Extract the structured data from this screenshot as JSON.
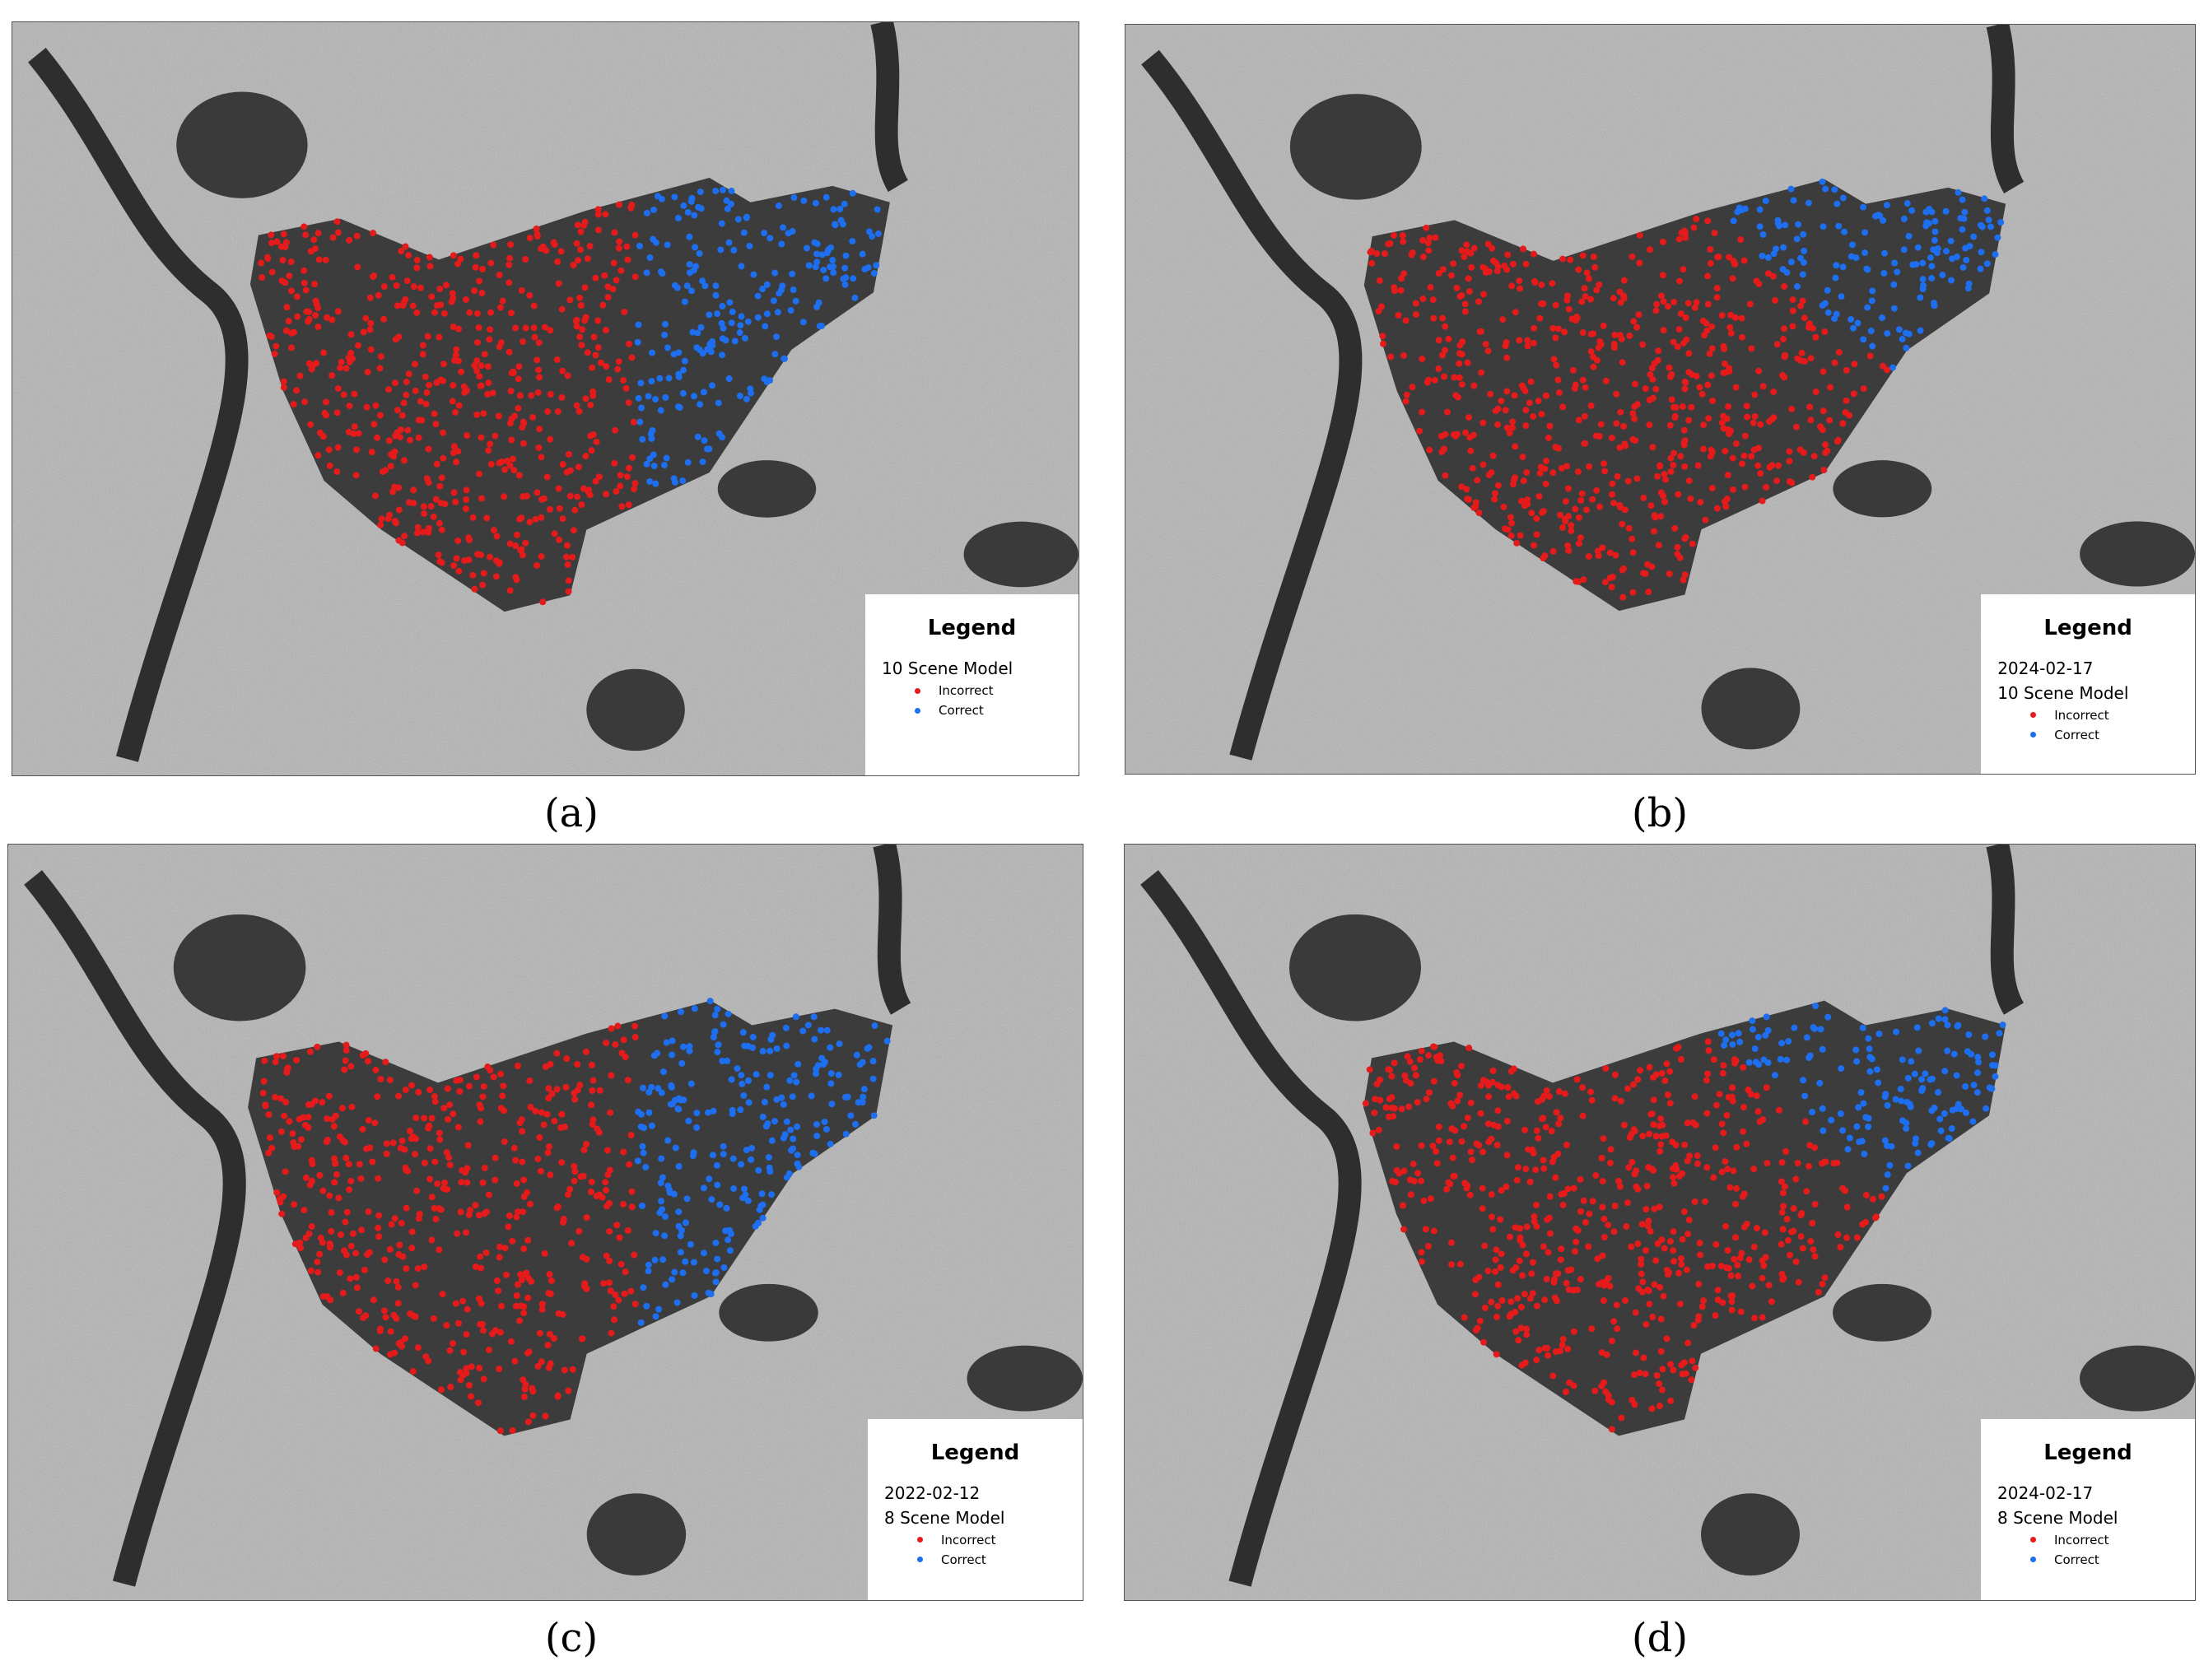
{
  "panels": [
    {
      "caption": "(a)",
      "legend": {
        "title": "Legend",
        "lines": [
          "10 Scene Model"
        ],
        "items": [
          "Incorrect",
          "Correct"
        ]
      }
    },
    {
      "caption": "(b)",
      "legend": {
        "title": "Legend",
        "lines": [
          "2024-02-17",
          "10 Scene Model"
        ],
        "items": [
          "Incorrect",
          "Correct"
        ]
      }
    },
    {
      "caption": "(c)",
      "legend": {
        "title": "Legend",
        "lines": [
          "2022-02-12",
          "8 Scene Model"
        ],
        "items": [
          "Incorrect",
          "Correct"
        ]
      }
    },
    {
      "caption": "(d)",
      "legend": {
        "title": "Legend",
        "lines": [
          "2024-02-17",
          "8 Scene Model"
        ],
        "items": [
          "Incorrect",
          "Correct"
        ]
      }
    }
  ]
}
